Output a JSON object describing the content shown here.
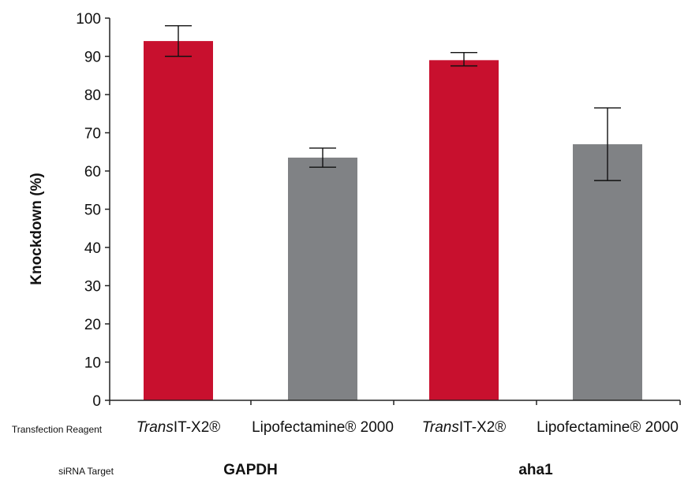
{
  "chart_data": {
    "type": "bar",
    "ylabel": "Knockdown (%)",
    "ylim": [
      0,
      100
    ],
    "yticks": [
      0,
      10,
      20,
      30,
      40,
      50,
      60,
      70,
      80,
      90,
      100
    ],
    "row_titles": {
      "reagent": "Transfection Reagent",
      "target": "siRNA Target"
    },
    "groups": [
      {
        "target": "GAPDH",
        "bars": [
          {
            "reagent_italic": "Trans",
            "reagent_rest": "IT-X2®",
            "value": 94,
            "err_low": 90,
            "err_high": 98,
            "color": "#c8102e"
          },
          {
            "reagent_italic": "",
            "reagent_rest": "Lipofectamine® 2000",
            "value": 63.5,
            "err_low": 61,
            "err_high": 66,
            "color": "#808285"
          }
        ]
      },
      {
        "target": "aha1",
        "bars": [
          {
            "reagent_italic": "Trans",
            "reagent_rest": "IT-X2®",
            "value": 89,
            "err_low": 87.5,
            "err_high": 91,
            "color": "#c8102e"
          },
          {
            "reagent_italic": "",
            "reagent_rest": "Lipofectamine® 2000",
            "value": 67,
            "err_low": 57.5,
            "err_high": 76.5,
            "color": "#808285"
          }
        ]
      }
    ],
    "grid": false,
    "legend": "none"
  }
}
